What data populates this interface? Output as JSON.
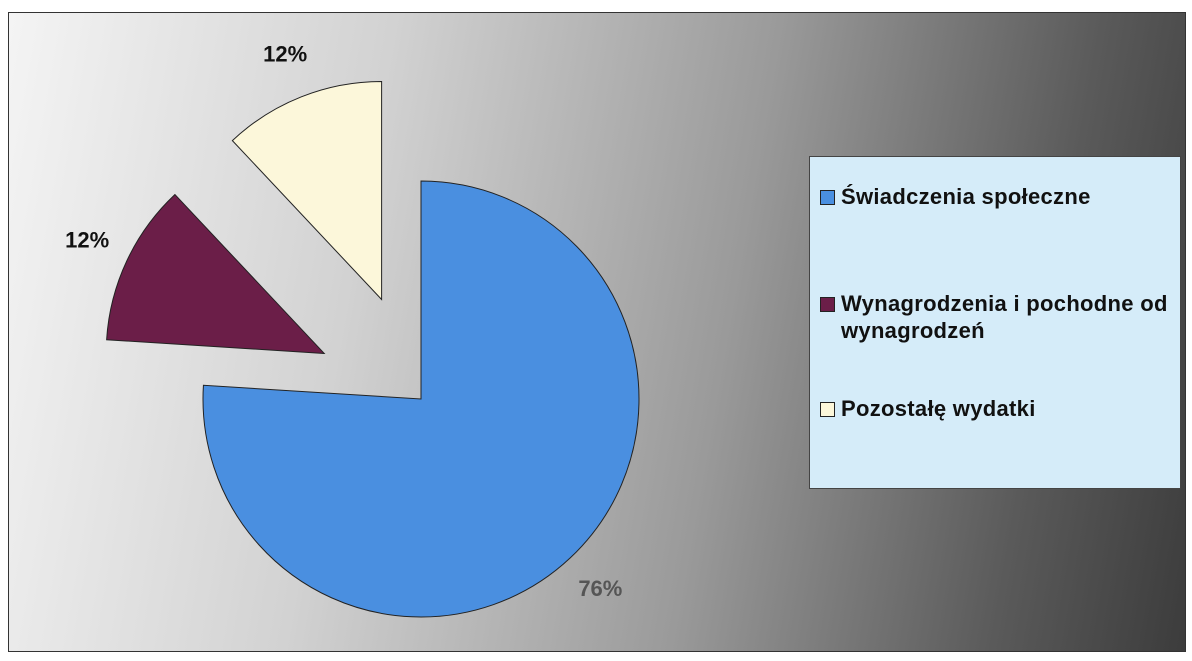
{
  "chart_data": {
    "type": "pie",
    "categories": [
      "Świadczenia społeczne",
      "Wynagrodzenia i pochodne od wynagrodzeń",
      "Pozostałę wydatki"
    ],
    "values": [
      76,
      12,
      12
    ],
    "value_labels": [
      "76%",
      "12%",
      "12%"
    ],
    "colors": [
      "#4a8fe0",
      "#6b1e48",
      "#fcf7da"
    ],
    "legend": "right"
  }
}
